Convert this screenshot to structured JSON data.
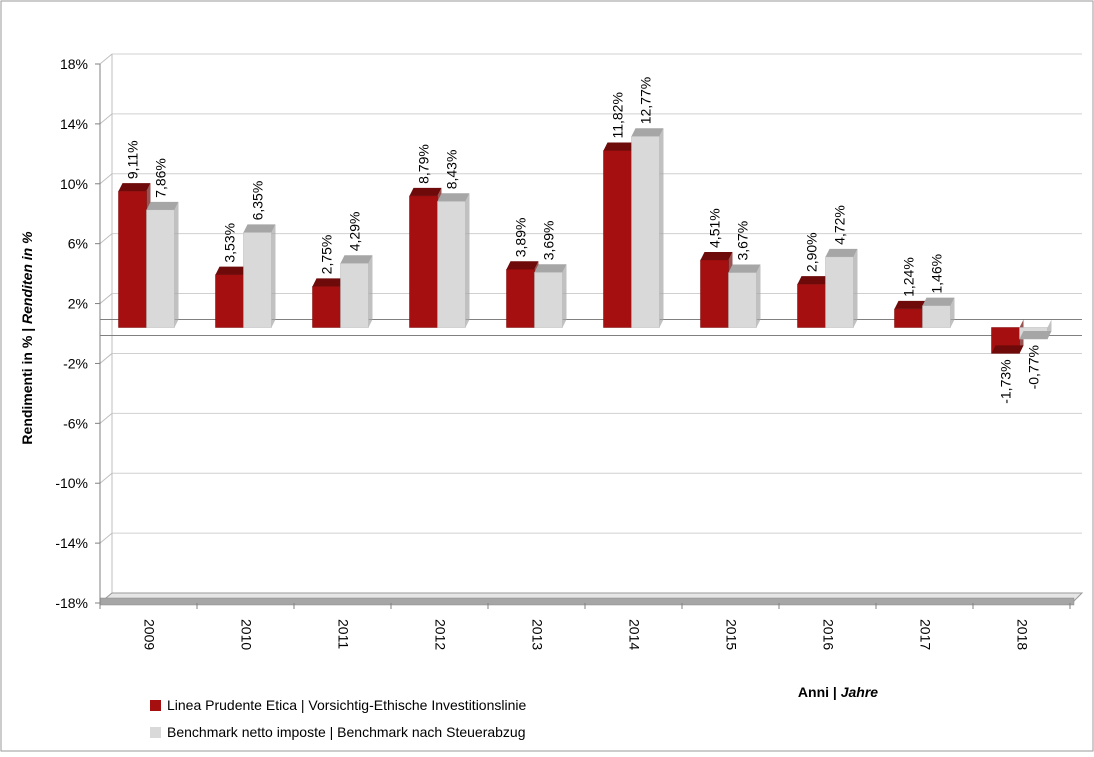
{
  "chart_data": {
    "type": "bar",
    "title": "",
    "ylabel_prefix": "Rendimenti in % | ",
    "ylabel_italic": "Renditen in %",
    "xlabel_prefix": "Anni | ",
    "xlabel_italic": "Jahre",
    "categories": [
      "2009",
      "2010",
      "2011",
      "2012",
      "2013",
      "2014",
      "2015",
      "2016",
      "2017",
      "2018"
    ],
    "ylim": [
      -18,
      18
    ],
    "yticks": [
      18,
      14,
      10,
      6,
      2,
      -2,
      -6,
      -10,
      -14,
      -18
    ],
    "ytick_labels": [
      "18%",
      "14%",
      "10%",
      "6%",
      "2%",
      "-2%",
      "-6%",
      "-10%",
      "-14%",
      "-18%"
    ],
    "baseline": 0,
    "grid": true,
    "legend_position": "bottom-left",
    "series": [
      {
        "name": "Linea Prudente Etica | Vorsichtig-Ethische Investitionslinie",
        "values": [
          9.11,
          3.53,
          2.75,
          8.79,
          3.89,
          11.82,
          4.51,
          2.9,
          1.24,
          -1.73
        ],
        "labels": [
          "9,11%",
          "3,53%",
          "2,75%",
          "8,79%",
          "3,89%",
          "11,82%",
          "4,51%",
          "2,90%",
          "1,24%",
          "-1,73%"
        ],
        "color": "#a50f0f",
        "top_color": "#6e0a0a"
      },
      {
        "name": "Benchmark netto imposte | Benchmark nach Steuerabzug",
        "values": [
          7.86,
          6.35,
          4.29,
          8.43,
          3.69,
          12.77,
          3.67,
          4.72,
          1.46,
          -0.77
        ],
        "labels": [
          "7,86%",
          "6,35%",
          "4,29%",
          "8,43%",
          "3,69%",
          "12,77%",
          "3,67%",
          "4,72%",
          "1,46%",
          "-0,77%"
        ],
        "color": "#d9d9d9",
        "top_color": "#a6a6a6"
      }
    ]
  }
}
